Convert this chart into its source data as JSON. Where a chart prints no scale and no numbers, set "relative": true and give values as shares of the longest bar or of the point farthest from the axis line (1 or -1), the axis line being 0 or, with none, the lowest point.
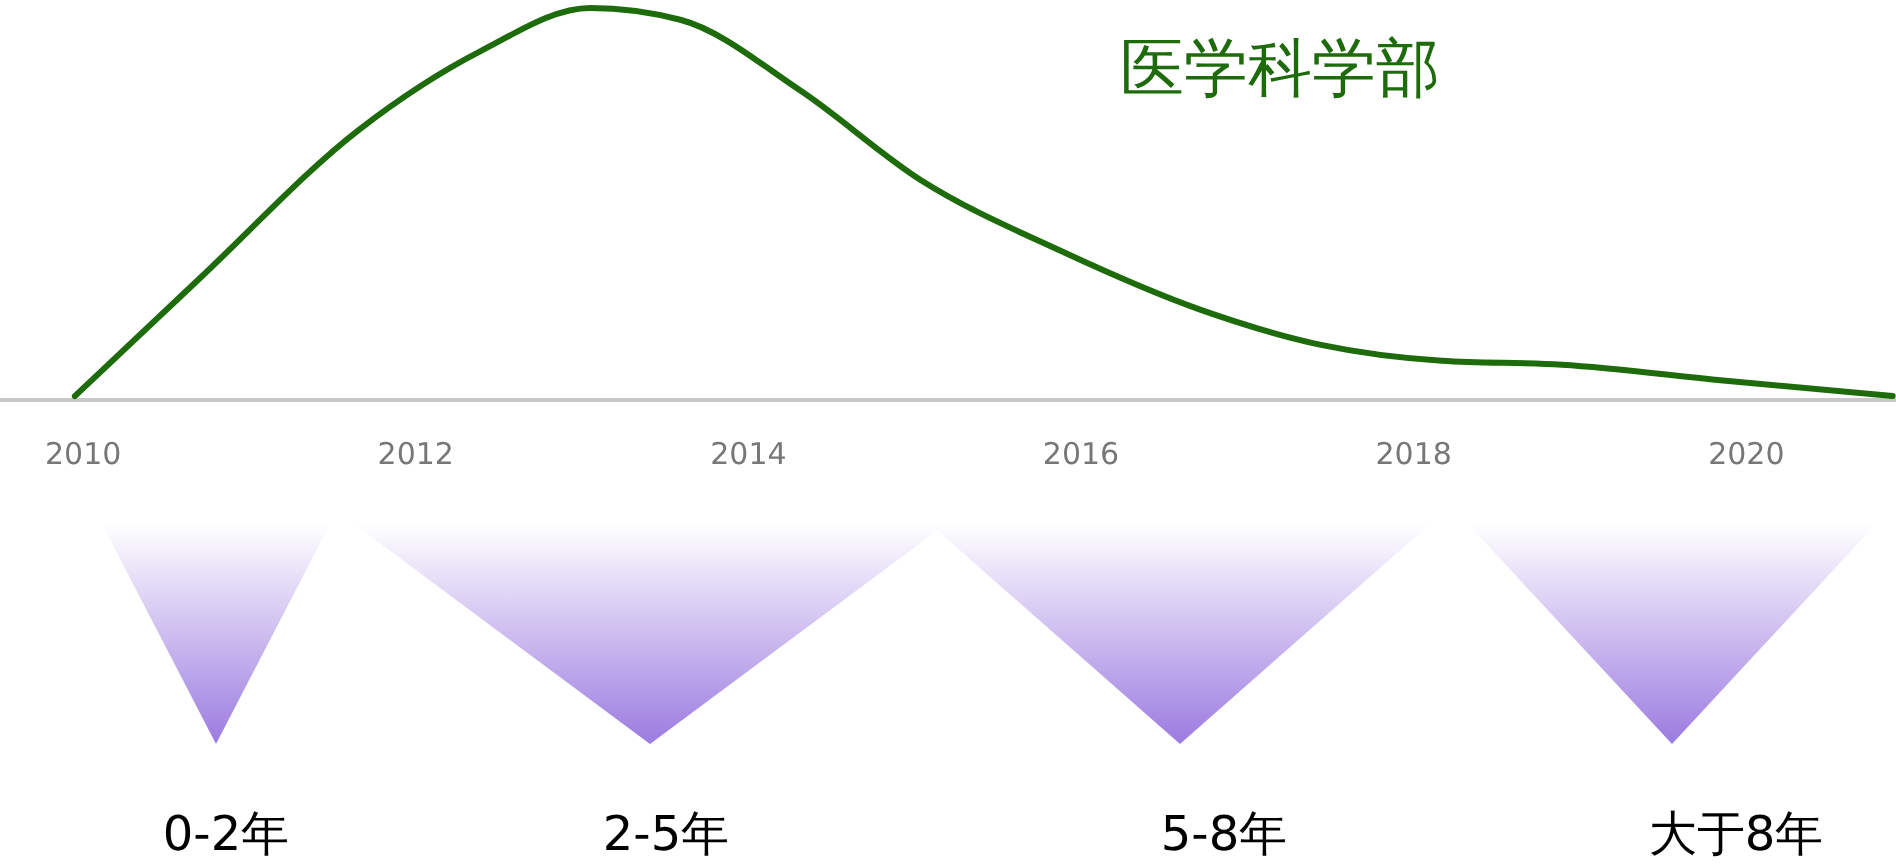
{
  "chart_data": {
    "type": "line",
    "title": "医学科学部",
    "relative": true,
    "xlim": [
      2009.5,
      2020.9
    ],
    "xticks": [
      2010,
      2012,
      2014,
      2016,
      2018,
      2020
    ],
    "grid": false,
    "line_style": "solid",
    "series": [
      {
        "color": "#1e6b0c",
        "x": [
          2009.95,
          2010.7,
          2011.66,
          2012.39,
          2013.05,
          2013.59,
          2014.31,
          2015.04,
          2015.88,
          2016.72,
          2017.45,
          2018.17,
          2018.89,
          2019.86,
          2020.88
        ],
        "values": [
          0.01,
          0.31,
          0.69,
          0.89,
          1.0,
          0.97,
          0.79,
          0.56,
          0.38,
          0.23,
          0.14,
          0.1,
          0.09,
          0.05,
          0.01
        ]
      }
    ],
    "annotations": [
      "0-2年",
      "2-5年",
      "5-8年",
      "大于8年"
    ]
  }
}
